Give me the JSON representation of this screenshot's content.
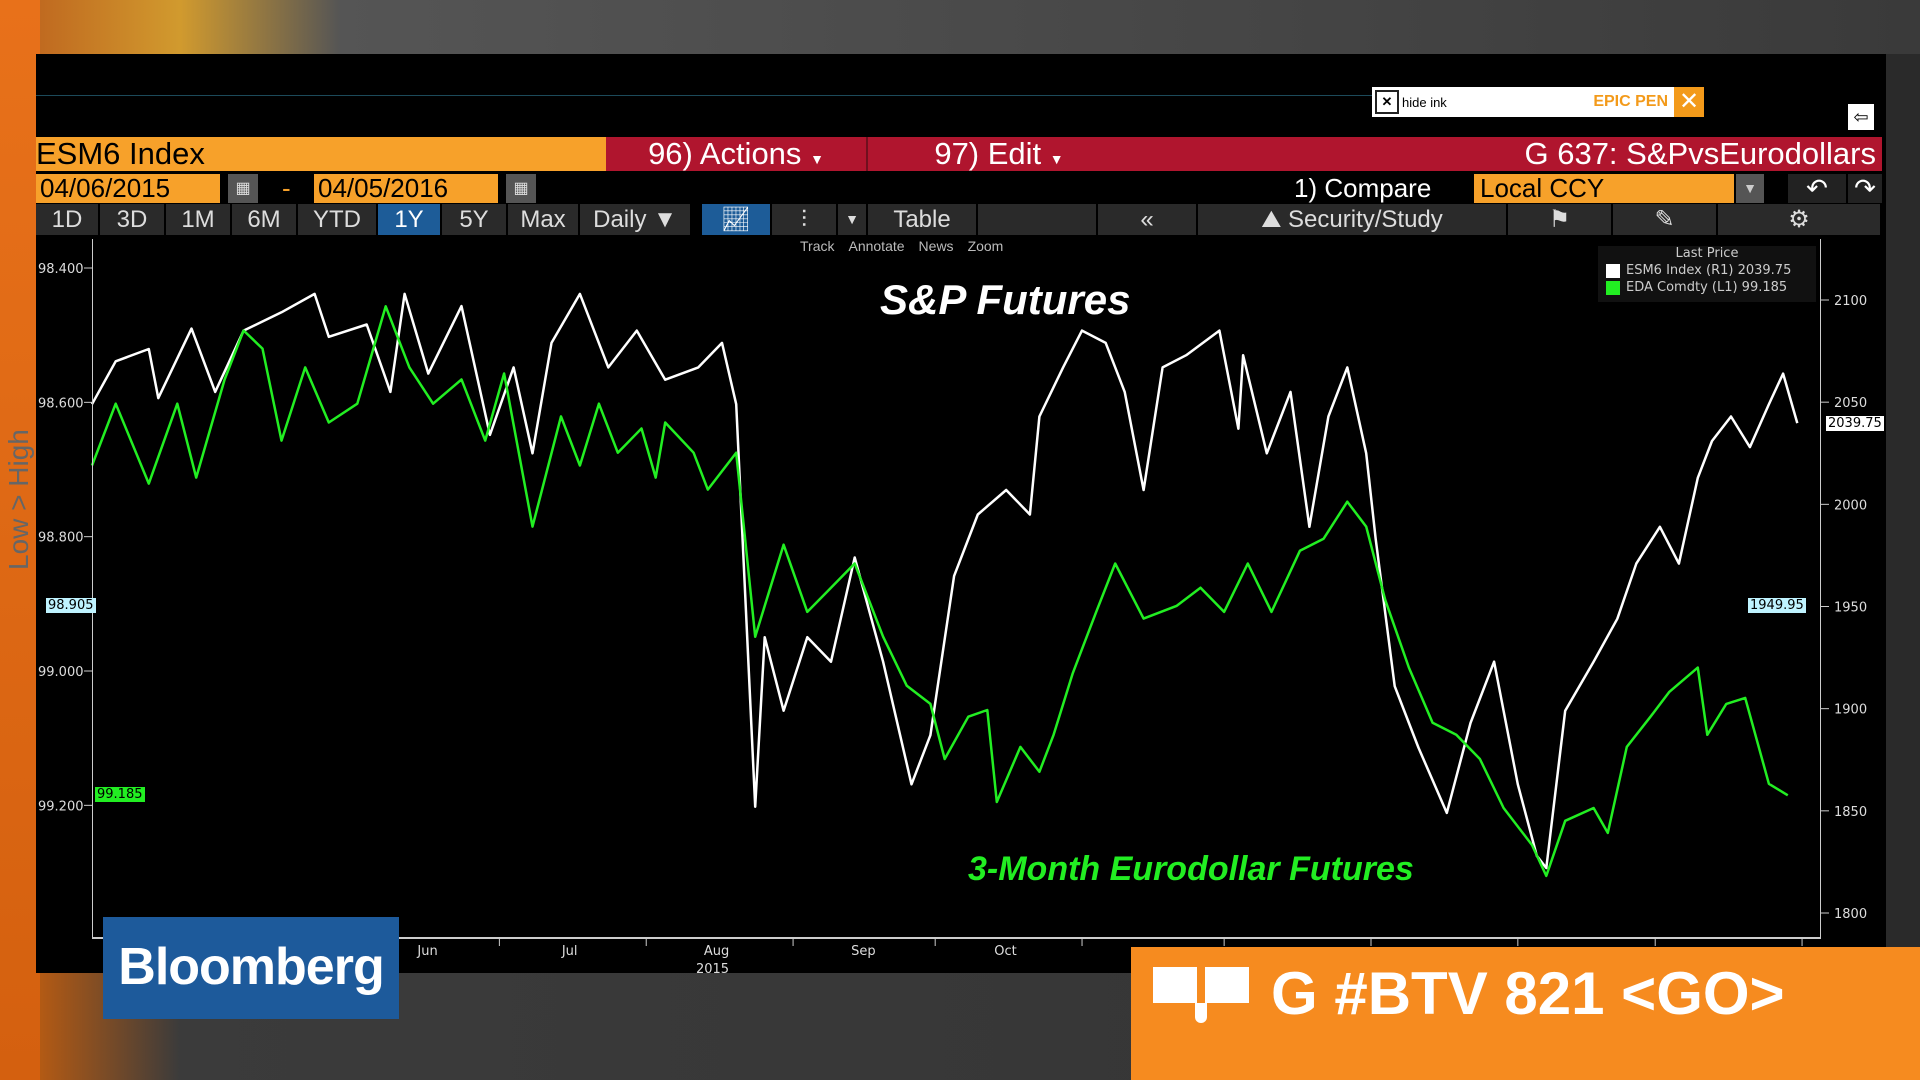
{
  "window": {
    "security": "ESM6 Index",
    "actions_label": "96) Actions",
    "edit_label": "97) Edit",
    "graph_title": "G 637: S&PvsEurodollars"
  },
  "epic_pen": {
    "hide_ink": "hide ink",
    "label": "EPIC PEN"
  },
  "dates": {
    "start": "04/06/2015",
    "sep": "-",
    "end": "04/05/2016"
  },
  "compare": {
    "label": "1) Compare",
    "currency": "Local CCY"
  },
  "toolbar": {
    "periods": [
      "1D",
      "3D",
      "1M",
      "6M",
      "YTD",
      "1Y",
      "5Y",
      "Max"
    ],
    "active_period": "1Y",
    "frequency": "Daily ▼",
    "table_label": "Table",
    "collapse": "«",
    "security_study": "Security/Study"
  },
  "subtools": [
    "Track",
    "Annotate",
    "News",
    "Zoom"
  ],
  "overlay": {
    "sp_title": "S&P Futures",
    "ed_title": "3-Month Eurodollar Futures",
    "axis_hint": "Low > High"
  },
  "legend": {
    "title": "Last Price",
    "items": [
      {
        "label": "ESM6 Index (R1) 2039.75",
        "color": "#ffffff"
      },
      {
        "label": "EDA Comdty (L1) 99.185",
        "color": "#22ee22"
      }
    ]
  },
  "badges": {
    "left_marker": "98.905",
    "left_last": "99.185",
    "right_last": "2039.75",
    "right_marker": "1949.95"
  },
  "branding": {
    "logo": "Bloomberg",
    "banner": "G #BTV 821 <GO>"
  },
  "chart_data": {
    "type": "line",
    "x_range": [
      "2015-04-06",
      "2016-04-05"
    ],
    "x_tick_labels": [
      "Jun",
      "Jul",
      "Aug",
      "Sep",
      "Oct"
    ],
    "x_year_label": "2015",
    "right_axis": {
      "range": [
        1800,
        2100
      ],
      "ticks": [
        "1800",
        "1850",
        "1900",
        "1950",
        "2000",
        "2050",
        "2100"
      ]
    },
    "left_axis": {
      "range": [
        98.4,
        99.2
      ],
      "inverted": true,
      "ticks": [
        "98.400",
        "98.600",
        "98.800",
        "99.000",
        "99.200"
      ]
    },
    "series": [
      {
        "name": "ESM6 Index",
        "axis": "right",
        "color": "#ffffff",
        "points": [
          [
            "2015-04-06",
            2049
          ],
          [
            "2015-04-11",
            2070
          ],
          [
            "2015-04-18",
            2076
          ],
          [
            "2015-04-20",
            2052
          ],
          [
            "2015-04-27",
            2086
          ],
          [
            "2015-05-02",
            2055
          ],
          [
            "2015-05-08",
            2085
          ],
          [
            "2015-05-16",
            2094
          ],
          [
            "2015-05-23",
            2103
          ],
          [
            "2015-05-26",
            2082
          ],
          [
            "2015-06-03",
            2088
          ],
          [
            "2015-06-08",
            2055
          ],
          [
            "2015-06-11",
            2103
          ],
          [
            "2015-06-16",
            2064
          ],
          [
            "2015-06-23",
            2097
          ],
          [
            "2015-06-29",
            2034
          ],
          [
            "2015-07-04",
            2067
          ],
          [
            "2015-07-08",
            2025
          ],
          [
            "2015-07-12",
            2079
          ],
          [
            "2015-07-18",
            2103
          ],
          [
            "2015-07-24",
            2067
          ],
          [
            "2015-07-30",
            2085
          ],
          [
            "2015-08-05",
            2061
          ],
          [
            "2015-08-12",
            2067
          ],
          [
            "2015-08-17",
            2079
          ],
          [
            "2015-08-20",
            2049
          ],
          [
            "2015-08-24",
            1852
          ],
          [
            "2015-08-26",
            1935
          ],
          [
            "2015-08-30",
            1899
          ],
          [
            "2015-09-04",
            1935
          ],
          [
            "2015-09-09",
            1923
          ],
          [
            "2015-09-14",
            1974
          ],
          [
            "2015-09-20",
            1923
          ],
          [
            "2015-09-26",
            1863
          ],
          [
            "2015-09-30",
            1887
          ],
          [
            "2015-10-05",
            1965
          ],
          [
            "2015-10-10",
            1995
          ],
          [
            "2015-10-16",
            2007
          ],
          [
            "2015-10-21",
            1995
          ],
          [
            "2015-10-23",
            2043
          ],
          [
            "2015-10-28",
            2067
          ],
          [
            "2015-11-01",
            2085
          ],
          [
            "2015-11-06",
            2079
          ],
          [
            "2015-11-10",
            2055
          ],
          [
            "2015-11-14",
            2007
          ],
          [
            "2015-11-18",
            2067
          ],
          [
            "2015-11-23",
            2073
          ],
          [
            "2015-11-30",
            2085
          ],
          [
            "2015-12-04",
            2037
          ],
          [
            "2015-12-05",
            2073
          ],
          [
            "2015-12-10",
            2025
          ],
          [
            "2015-12-15",
            2055
          ],
          [
            "2015-12-19",
            1989
          ],
          [
            "2015-12-23",
            2043
          ],
          [
            "2015-12-27",
            2067
          ],
          [
            "2015-12-31",
            2025
          ],
          [
            "2016-01-02",
            1983
          ],
          [
            "2016-01-06",
            1911
          ],
          [
            "2016-01-11",
            1881
          ],
          [
            "2016-01-17",
            1849
          ],
          [
            "2016-01-22",
            1893
          ],
          [
            "2016-01-27",
            1923
          ],
          [
            "2016-02-01",
            1863
          ],
          [
            "2016-02-05",
            1828
          ],
          [
            "2016-02-07",
            1822
          ],
          [
            "2016-02-11",
            1899
          ],
          [
            "2016-02-17",
            1923
          ],
          [
            "2016-02-22",
            1944
          ],
          [
            "2016-02-26",
            1971
          ],
          [
            "2016-03-02",
            1989
          ],
          [
            "2016-03-06",
            1971
          ],
          [
            "2016-03-10",
            2013
          ],
          [
            "2016-03-13",
            2031
          ],
          [
            "2016-03-17",
            2043
          ],
          [
            "2016-03-21",
            2028
          ],
          [
            "2016-03-25",
            2049
          ],
          [
            "2016-03-28",
            2064
          ],
          [
            "2016-03-31",
            2039.75
          ]
        ]
      },
      {
        "name": "EDA Comdty",
        "axis": "left",
        "color": "#22ee22",
        "points": [
          [
            "2015-04-06",
            98.694
          ],
          [
            "2015-04-11",
            98.602
          ],
          [
            "2015-04-18",
            98.721
          ],
          [
            "2015-04-24",
            98.602
          ],
          [
            "2015-04-28",
            98.712
          ],
          [
            "2015-05-04",
            98.566
          ],
          [
            "2015-05-08",
            98.493
          ],
          [
            "2015-05-12",
            98.52
          ],
          [
            "2015-05-16",
            98.657
          ],
          [
            "2015-05-21",
            98.548
          ],
          [
            "2015-05-26",
            98.63
          ],
          [
            "2015-06-01",
            98.602
          ],
          [
            "2015-06-07",
            98.457
          ],
          [
            "2015-06-12",
            98.548
          ],
          [
            "2015-06-17",
            98.602
          ],
          [
            "2015-06-23",
            98.566
          ],
          [
            "2015-06-28",
            98.657
          ],
          [
            "2015-07-02",
            98.557
          ],
          [
            "2015-07-08",
            98.785
          ],
          [
            "2015-07-14",
            98.621
          ],
          [
            "2015-07-18",
            98.694
          ],
          [
            "2015-07-22",
            98.602
          ],
          [
            "2015-07-26",
            98.675
          ],
          [
            "2015-07-31",
            98.639
          ],
          [
            "2015-08-03",
            98.712
          ],
          [
            "2015-08-05",
            98.63
          ],
          [
            "2015-08-11",
            98.675
          ],
          [
            "2015-08-14",
            98.73
          ],
          [
            "2015-08-20",
            98.675
          ],
          [
            "2015-08-24",
            98.949
          ],
          [
            "2015-08-30",
            98.812
          ],
          [
            "2015-09-04",
            98.912
          ],
          [
            "2015-09-09",
            98.876
          ],
          [
            "2015-09-14",
            98.84
          ],
          [
            "2015-09-20",
            98.949
          ],
          [
            "2015-09-25",
            99.022
          ],
          [
            "2015-09-30",
            99.049
          ],
          [
            "2015-10-03",
            99.131
          ],
          [
            "2015-10-08",
            99.068
          ],
          [
            "2015-10-12",
            99.058
          ],
          [
            "2015-10-14",
            99.195
          ],
          [
            "2015-10-19",
            99.113
          ],
          [
            "2015-10-23",
            99.15
          ],
          [
            "2015-10-26",
            99.095
          ],
          [
            "2015-10-30",
            99.004
          ],
          [
            "2015-11-04",
            98.912
          ],
          [
            "2015-11-08",
            98.84
          ],
          [
            "2015-11-14",
            98.922
          ],
          [
            "2015-11-21",
            98.903
          ],
          [
            "2015-11-26",
            98.876
          ],
          [
            "2015-12-01",
            98.912
          ],
          [
            "2015-12-06",
            98.84
          ],
          [
            "2015-12-11",
            98.912
          ],
          [
            "2015-12-17",
            98.821
          ],
          [
            "2015-12-22",
            98.803
          ],
          [
            "2015-12-27",
            98.748
          ],
          [
            "2015-12-31",
            98.785
          ],
          [
            "2016-01-04",
            98.894
          ],
          [
            "2016-01-09",
            98.995
          ],
          [
            "2016-01-14",
            99.077
          ],
          [
            "2016-01-19",
            99.095
          ],
          [
            "2016-01-24",
            99.131
          ],
          [
            "2016-01-29",
            99.204
          ],
          [
            "2016-02-04",
            99.259
          ],
          [
            "2016-02-07",
            99.305
          ],
          [
            "2016-02-11",
            99.223
          ],
          [
            "2016-02-17",
            99.204
          ],
          [
            "2016-02-20",
            99.241
          ],
          [
            "2016-02-24",
            99.113
          ],
          [
            "2016-02-29",
            99.068
          ],
          [
            "2016-03-04",
            99.031
          ],
          [
            "2016-03-10",
            98.995
          ],
          [
            "2016-03-12",
            99.095
          ],
          [
            "2016-03-16",
            99.049
          ],
          [
            "2016-03-20",
            99.04
          ],
          [
            "2016-03-25",
            99.168
          ],
          [
            "2016-03-29",
            99.185
          ]
        ]
      }
    ]
  }
}
